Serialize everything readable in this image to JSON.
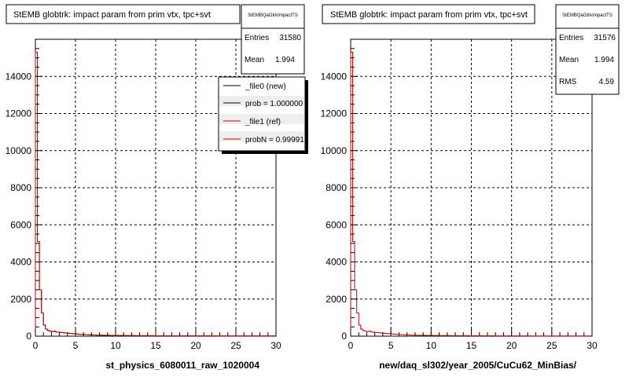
{
  "chart_data": [
    {
      "type": "histogram",
      "title": "StEMB globtrk: impact param from prim vtx, tpc+svt",
      "xlabel": "st_physics_6080011_raw_1020004",
      "ylabel": "",
      "xlim": [
        0,
        30
      ],
      "ylim": [
        0,
        16000
      ],
      "grid": true,
      "x_ticks": [
        "0",
        "5",
        "10",
        "15",
        "20",
        "25",
        "30"
      ],
      "y_ticks": [
        "0",
        "2000",
        "4000",
        "6000",
        "8000",
        "10000",
        "12000",
        "14000"
      ],
      "stats": {
        "name": "StEMBQaGtrkImpactTS",
        "rows": [
          {
            "label": "Entries",
            "value": "31580"
          },
          {
            "label": "Mean",
            "value": "1.994"
          }
        ]
      },
      "legend": {
        "placement": "top-right",
        "entries": [
          {
            "label": "_file0 (new)",
            "color": "#000000"
          },
          {
            "label": "prob = 1.000000",
            "color": "#000000"
          },
          {
            "label": "_file1 (ref)",
            "color": "#cc0000"
          },
          {
            "label": "probN = 0.99991",
            "color": "#cc0000"
          }
        ]
      },
      "series": [
        {
          "color": "#000000",
          "bin_width": 0.25,
          "values": [
            15300,
            5100,
            2500,
            1250,
            600,
            380,
            300,
            270,
            250,
            270,
            230,
            210,
            200,
            190,
            180,
            170,
            160,
            150,
            140,
            130,
            120,
            110,
            100,
            95,
            90,
            85,
            80,
            75,
            70,
            65,
            60,
            58,
            55,
            52,
            50,
            48,
            46,
            44,
            42,
            40,
            40,
            38,
            36,
            35,
            34,
            33,
            32,
            31,
            30,
            30,
            29,
            28,
            27,
            27,
            26,
            25,
            25,
            24,
            24,
            23,
            23,
            22,
            22,
            21,
            21,
            20,
            20,
            20,
            19,
            19,
            19,
            18,
            18,
            18,
            17,
            17,
            17,
            16,
            16,
            16,
            16,
            15,
            15,
            15,
            15,
            14,
            14,
            14,
            14,
            13,
            13,
            13,
            13,
            13,
            12,
            12,
            12,
            12,
            12,
            11,
            11,
            11,
            11,
            11,
            11,
            10,
            10,
            10,
            10,
            10,
            10,
            10,
            9,
            9,
            9,
            9,
            9,
            9,
            9,
            9
          ]
        },
        {
          "color": "#cc0000",
          "bin_width": 0.25,
          "values": [
            15300,
            5100,
            2500,
            1250,
            600,
            380,
            300,
            270,
            250,
            270,
            230,
            210,
            200,
            190,
            180,
            170,
            160,
            150,
            140,
            130,
            120,
            110,
            100,
            95,
            90,
            85,
            80,
            75,
            70,
            65,
            60,
            58,
            55,
            52,
            50,
            48,
            46,
            44,
            42,
            40,
            40,
            38,
            36,
            35,
            34,
            33,
            32,
            31,
            30,
            30,
            29,
            28,
            27,
            27,
            26,
            25,
            25,
            24,
            24,
            23,
            23,
            22,
            22,
            21,
            21,
            20,
            20,
            20,
            19,
            19,
            19,
            18,
            18,
            18,
            17,
            17,
            17,
            16,
            16,
            16,
            16,
            15,
            15,
            15,
            15,
            14,
            14,
            14,
            14,
            13,
            13,
            13,
            13,
            13,
            12,
            12,
            12,
            12,
            12,
            11,
            11,
            11,
            11,
            11,
            11,
            10,
            10,
            10,
            10,
            10,
            10,
            10,
            9,
            9,
            9,
            9,
            9,
            9,
            9,
            9
          ]
        }
      ]
    },
    {
      "type": "histogram",
      "title": "StEMB globtrk: impact param from prim vtx, tpc+svt",
      "xlabel": "new/daq_sl302/year_2005/CuCu62_MinBias/",
      "ylabel": "",
      "xlim": [
        0,
        30
      ],
      "ylim": [
        0,
        16000
      ],
      "grid": true,
      "x_ticks": [
        "0",
        "5",
        "10",
        "15",
        "20",
        "25",
        "30"
      ],
      "y_ticks": [
        "0",
        "2000",
        "4000",
        "6000",
        "8000",
        "10000",
        "12000",
        "14000"
      ],
      "stats": {
        "name": "StEMBQaGtrkImpactTS",
        "rows": [
          {
            "label": "Entries",
            "value": "31576"
          },
          {
            "label": "Mean",
            "value": "1.994"
          },
          {
            "label": "RMS",
            "value": "4.59"
          }
        ]
      },
      "series": [
        {
          "color": "#cc0000",
          "bin_width": 0.25,
          "values": [
            15300,
            5100,
            2500,
            1250,
            600,
            380,
            300,
            270,
            250,
            270,
            230,
            210,
            200,
            190,
            180,
            170,
            160,
            150,
            140,
            130,
            120,
            110,
            100,
            95,
            90,
            85,
            80,
            75,
            70,
            65,
            60,
            58,
            55,
            52,
            50,
            48,
            46,
            44,
            42,
            40,
            40,
            38,
            36,
            35,
            34,
            33,
            32,
            31,
            30,
            30,
            29,
            28,
            27,
            27,
            26,
            25,
            25,
            24,
            24,
            23,
            23,
            22,
            22,
            21,
            21,
            20,
            20,
            20,
            19,
            19,
            19,
            18,
            18,
            18,
            17,
            17,
            17,
            16,
            16,
            16,
            16,
            15,
            15,
            15,
            15,
            14,
            14,
            14,
            14,
            13,
            13,
            13,
            13,
            13,
            12,
            12,
            12,
            12,
            12,
            11,
            11,
            11,
            11,
            11,
            11,
            10,
            10,
            10,
            10,
            10,
            10,
            10,
            9,
            9,
            9,
            9,
            9,
            9,
            9,
            9
          ]
        }
      ]
    }
  ]
}
